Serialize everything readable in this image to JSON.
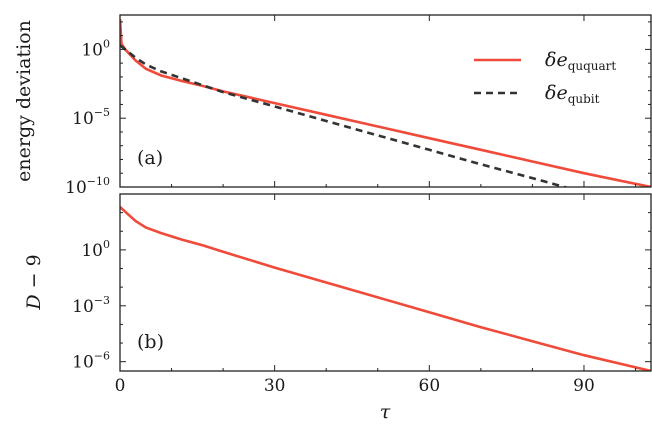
{
  "chart_data": [
    {
      "id": "panel-a",
      "type": "line",
      "panel_tag": "(a)",
      "ylabel": "energy deviation",
      "yscale": "log",
      "ylim_exp": [
        -10,
        2.5
      ],
      "yticks": [
        {
          "base": "10",
          "exp": "0",
          "value_exp": 0
        },
        {
          "base": "10",
          "exp": "−5",
          "value_exp": -5
        },
        {
          "base": "10",
          "exp": "−10",
          "value_exp": -10
        }
      ],
      "xlim": [
        0,
        103
      ],
      "series": [
        {
          "name_main": "δe",
          "name_sub": "ququart",
          "color": "#f04a3a",
          "dash": "solid",
          "points": [
            [
              0,
              2.2
            ],
            [
              0.3,
              0.4
            ],
            [
              1,
              0.0
            ],
            [
              3,
              -0.8
            ],
            [
              5,
              -1.4
            ],
            [
              8,
              -1.9
            ],
            [
              12,
              -2.3
            ],
            [
              16,
              -2.65
            ],
            [
              20,
              -3.05
            ],
            [
              30,
              -3.9
            ],
            [
              40,
              -4.75
            ],
            [
              50,
              -5.6
            ],
            [
              60,
              -6.45
            ],
            [
              70,
              -7.3
            ],
            [
              80,
              -8.15
            ],
            [
              90,
              -9.0
            ],
            [
              103,
              -10.0
            ]
          ]
        },
        {
          "name_main": "δe",
          "name_sub": "qubit",
          "color": "#333333",
          "dash": "dashed",
          "points": [
            [
              0,
              0.3
            ],
            [
              1,
              0.0
            ],
            [
              3,
              -0.6
            ],
            [
              5,
              -1.1
            ],
            [
              8,
              -1.6
            ],
            [
              12,
              -2.1
            ],
            [
              16,
              -2.6
            ],
            [
              20,
              -3.1
            ],
            [
              30,
              -4.15
            ],
            [
              40,
              -5.2
            ],
            [
              50,
              -6.25
            ],
            [
              60,
              -7.3
            ],
            [
              70,
              -8.35
            ],
            [
              80,
              -9.35
            ],
            [
              90,
              -10.4
            ],
            [
              103,
              -11.8
            ]
          ]
        }
      ],
      "legend_position": "top-right"
    },
    {
      "id": "panel-b",
      "type": "line",
      "panel_tag": "(b)",
      "ylabel_main": "D",
      "ylabel_rest": "− 9",
      "yscale": "log",
      "ylim_exp": [
        -6.5,
        3.0
      ],
      "yticks": [
        {
          "base": "10",
          "exp": "0",
          "value_exp": 0
        },
        {
          "base": "10",
          "exp": "−3",
          "value_exp": -3
        },
        {
          "base": "10",
          "exp": "−6",
          "value_exp": -6
        }
      ],
      "xlim": [
        0,
        103
      ],
      "xlabel": "τ",
      "xticks": [
        "0",
        "30",
        "60",
        "90"
      ],
      "xtick_values": [
        0,
        30,
        60,
        90
      ],
      "series": [
        {
          "name": "",
          "color": "#f04a3a",
          "dash": "solid",
          "points": [
            [
              0,
              2.3
            ],
            [
              1,
              2.05
            ],
            [
              3,
              1.55
            ],
            [
              5,
              1.2
            ],
            [
              8,
              0.9
            ],
            [
              12,
              0.55
            ],
            [
              16,
              0.25
            ],
            [
              20,
              -0.1
            ],
            [
              30,
              -0.95
            ],
            [
              40,
              -1.75
            ],
            [
              50,
              -2.55
            ],
            [
              60,
              -3.35
            ],
            [
              70,
              -4.15
            ],
            [
              80,
              -4.9
            ],
            [
              90,
              -5.65
            ],
            [
              103,
              -6.5
            ]
          ]
        }
      ]
    }
  ]
}
